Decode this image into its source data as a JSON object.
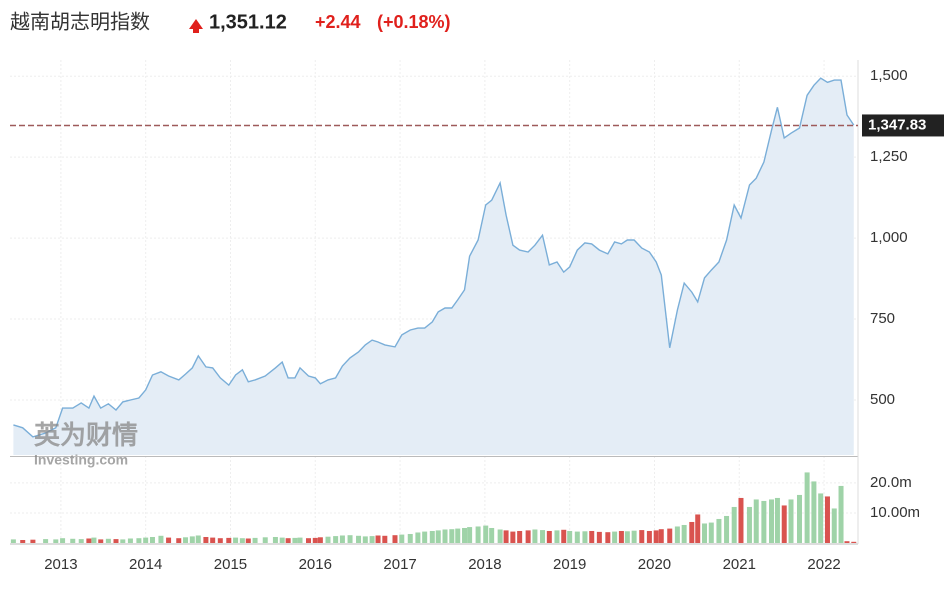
{
  "header": {
    "title": "越南胡志明指数",
    "price": "1,351.12",
    "change": "+2.44",
    "change_pct": "(+0.18%)"
  },
  "watermark": {
    "brand": "英为财情",
    "site": "Investing.com"
  },
  "chart_data": {
    "type": "area",
    "x": [
      2012.44,
      2012.55,
      2012.67,
      2012.82,
      2012.94,
      2013.02,
      2013.14,
      2013.24,
      2013.33,
      2013.39,
      2013.47,
      2013.56,
      2013.65,
      2013.73,
      2013.82,
      2013.92,
      2014.0,
      2014.08,
      2014.18,
      2014.27,
      2014.39,
      2014.47,
      2014.55,
      2014.62,
      2014.71,
      2014.79,
      2014.88,
      2014.98,
      2015.06,
      2015.14,
      2015.21,
      2015.29,
      2015.41,
      2015.53,
      2015.61,
      2015.68,
      2015.76,
      2015.82,
      2015.92,
      2016.0,
      2016.06,
      2016.15,
      2016.24,
      2016.32,
      2016.41,
      2016.51,
      2016.59,
      2016.67,
      2016.74,
      2016.82,
      2016.94,
      2017.02,
      2017.12,
      2017.21,
      2017.29,
      2017.38,
      2017.45,
      2017.53,
      2017.61,
      2017.68,
      2017.76,
      2017.82,
      2017.92,
      2018.01,
      2018.08,
      2018.18,
      2018.25,
      2018.33,
      2018.41,
      2018.51,
      2018.59,
      2018.68,
      2018.76,
      2018.85,
      2018.93,
      2019.0,
      2019.09,
      2019.18,
      2019.26,
      2019.35,
      2019.45,
      2019.53,
      2019.61,
      2019.68,
      2019.76,
      2019.85,
      2019.94,
      2020.02,
      2020.08,
      2020.18,
      2020.27,
      2020.35,
      2020.44,
      2020.51,
      2020.59,
      2020.67,
      2020.76,
      2020.85,
      2020.94,
      2021.02,
      2021.12,
      2021.2,
      2021.29,
      2021.38,
      2021.45,
      2021.53,
      2021.61,
      2021.71,
      2021.8,
      2021.88,
      2021.96,
      2022.04,
      2022.12,
      2022.2,
      2022.27,
      2022.35
    ],
    "series": [
      {
        "color": "#7aaed8",
        "fill": "#e4edf6",
        "values": [
          423,
          414,
          386,
          398,
          414,
          475,
          475,
          491,
          475,
          512,
          475,
          488,
          469,
          494,
          500,
          506,
          531,
          577,
          587,
          574,
          562,
          580,
          599,
          636,
          602,
          599,
          568,
          546,
          577,
          593,
          556,
          562,
          574,
          599,
          617,
          568,
          568,
          599,
          574,
          568,
          550,
          562,
          568,
          605,
          630,
          648,
          670,
          685,
          679,
          670,
          664,
          701,
          716,
          722,
          722,
          741,
          772,
          784,
          784,
          809,
          840,
          944,
          994,
          1102,
          1117,
          1170,
          1071,
          978,
          963,
          957,
          978,
          1009,
          917,
          926,
          895,
          911,
          963,
          985,
          982,
          963,
          951,
          988,
          982,
          994,
          994,
          969,
          957,
          926,
          886,
          661,
          778,
          861,
          833,
          803,
          877,
          901,
          926,
          994,
          1102,
          1062,
          1164,
          1185,
          1235,
          1333,
          1404,
          1309,
          1324,
          1340,
          1441,
          1472,
          1494,
          1481,
          1488,
          1488,
          1380,
          1349
        ]
      },
      {
        "axis": "y2",
        "up_color": "#9fd3a8",
        "down_color": "#d9534f",
        "values": [
          1.2,
          1.0,
          1.1,
          1.3,
          1.2,
          1.6,
          1.4,
          1.3,
          1.5,
          1.8,
          1.2,
          1.4,
          1.3,
          1.2,
          1.5,
          1.6,
          1.8,
          2.0,
          2.4,
          1.8,
          1.6,
          1.9,
          2.2,
          2.5,
          2.0,
          1.8,
          1.6,
          1.7,
          1.8,
          1.6,
          1.5,
          1.7,
          1.9,
          2.0,
          1.8,
          1.6,
          1.7,
          1.8,
          1.6,
          1.7,
          1.9,
          2.1,
          2.3,
          2.5,
          2.6,
          2.4,
          2.2,
          2.3,
          2.5,
          2.4,
          2.6,
          2.8,
          3.0,
          3.5,
          3.8,
          4.0,
          4.2,
          4.5,
          4.6,
          4.8,
          5.0,
          5.3,
          5.5,
          5.8,
          5.0,
          4.5,
          4.2,
          3.8,
          4.0,
          4.2,
          4.5,
          4.3,
          4.0,
          4.2,
          4.4,
          4.0,
          3.8,
          3.9,
          4.0,
          3.7,
          3.6,
          3.8,
          4.0,
          3.9,
          4.1,
          4.3,
          4.0,
          4.2,
          4.6,
          4.8,
          5.5,
          6.0,
          7.0,
          9.5,
          6.5,
          6.8,
          8.0,
          9.0,
          12.0,
          15.0,
          12.0,
          14.5,
          14.0,
          14.5,
          15.0,
          12.5,
          14.5,
          16.0,
          23.5,
          20.5,
          16.5,
          15.5,
          11.5,
          19.0,
          0.6,
          0.4
        ]
      }
    ],
    "xlim": [
      2012.4,
      2022.4
    ],
    "xticks": [
      2013,
      2014,
      2015,
      2016,
      2017,
      2018,
      2019,
      2020,
      2021,
      2022
    ],
    "ylim": [
      330,
      1550
    ],
    "yticks": [
      {
        "value": 500,
        "label": "500"
      },
      {
        "value": 750,
        "label": "750"
      },
      {
        "value": 1000,
        "label": "1,000"
      },
      {
        "value": 1250,
        "label": "1,250"
      },
      {
        "value": 1500,
        "label": "1,500"
      }
    ],
    "y2lim": [
      0,
      28.3
    ],
    "y2ticks": [
      {
        "value": 10,
        "label": "10.00m"
      },
      {
        "value": 20,
        "label": "20.0m"
      }
    ],
    "last_price": {
      "value": 1347.83,
      "label": "1,347.83",
      "color": "#9e5a5a"
    },
    "grid": true
  }
}
